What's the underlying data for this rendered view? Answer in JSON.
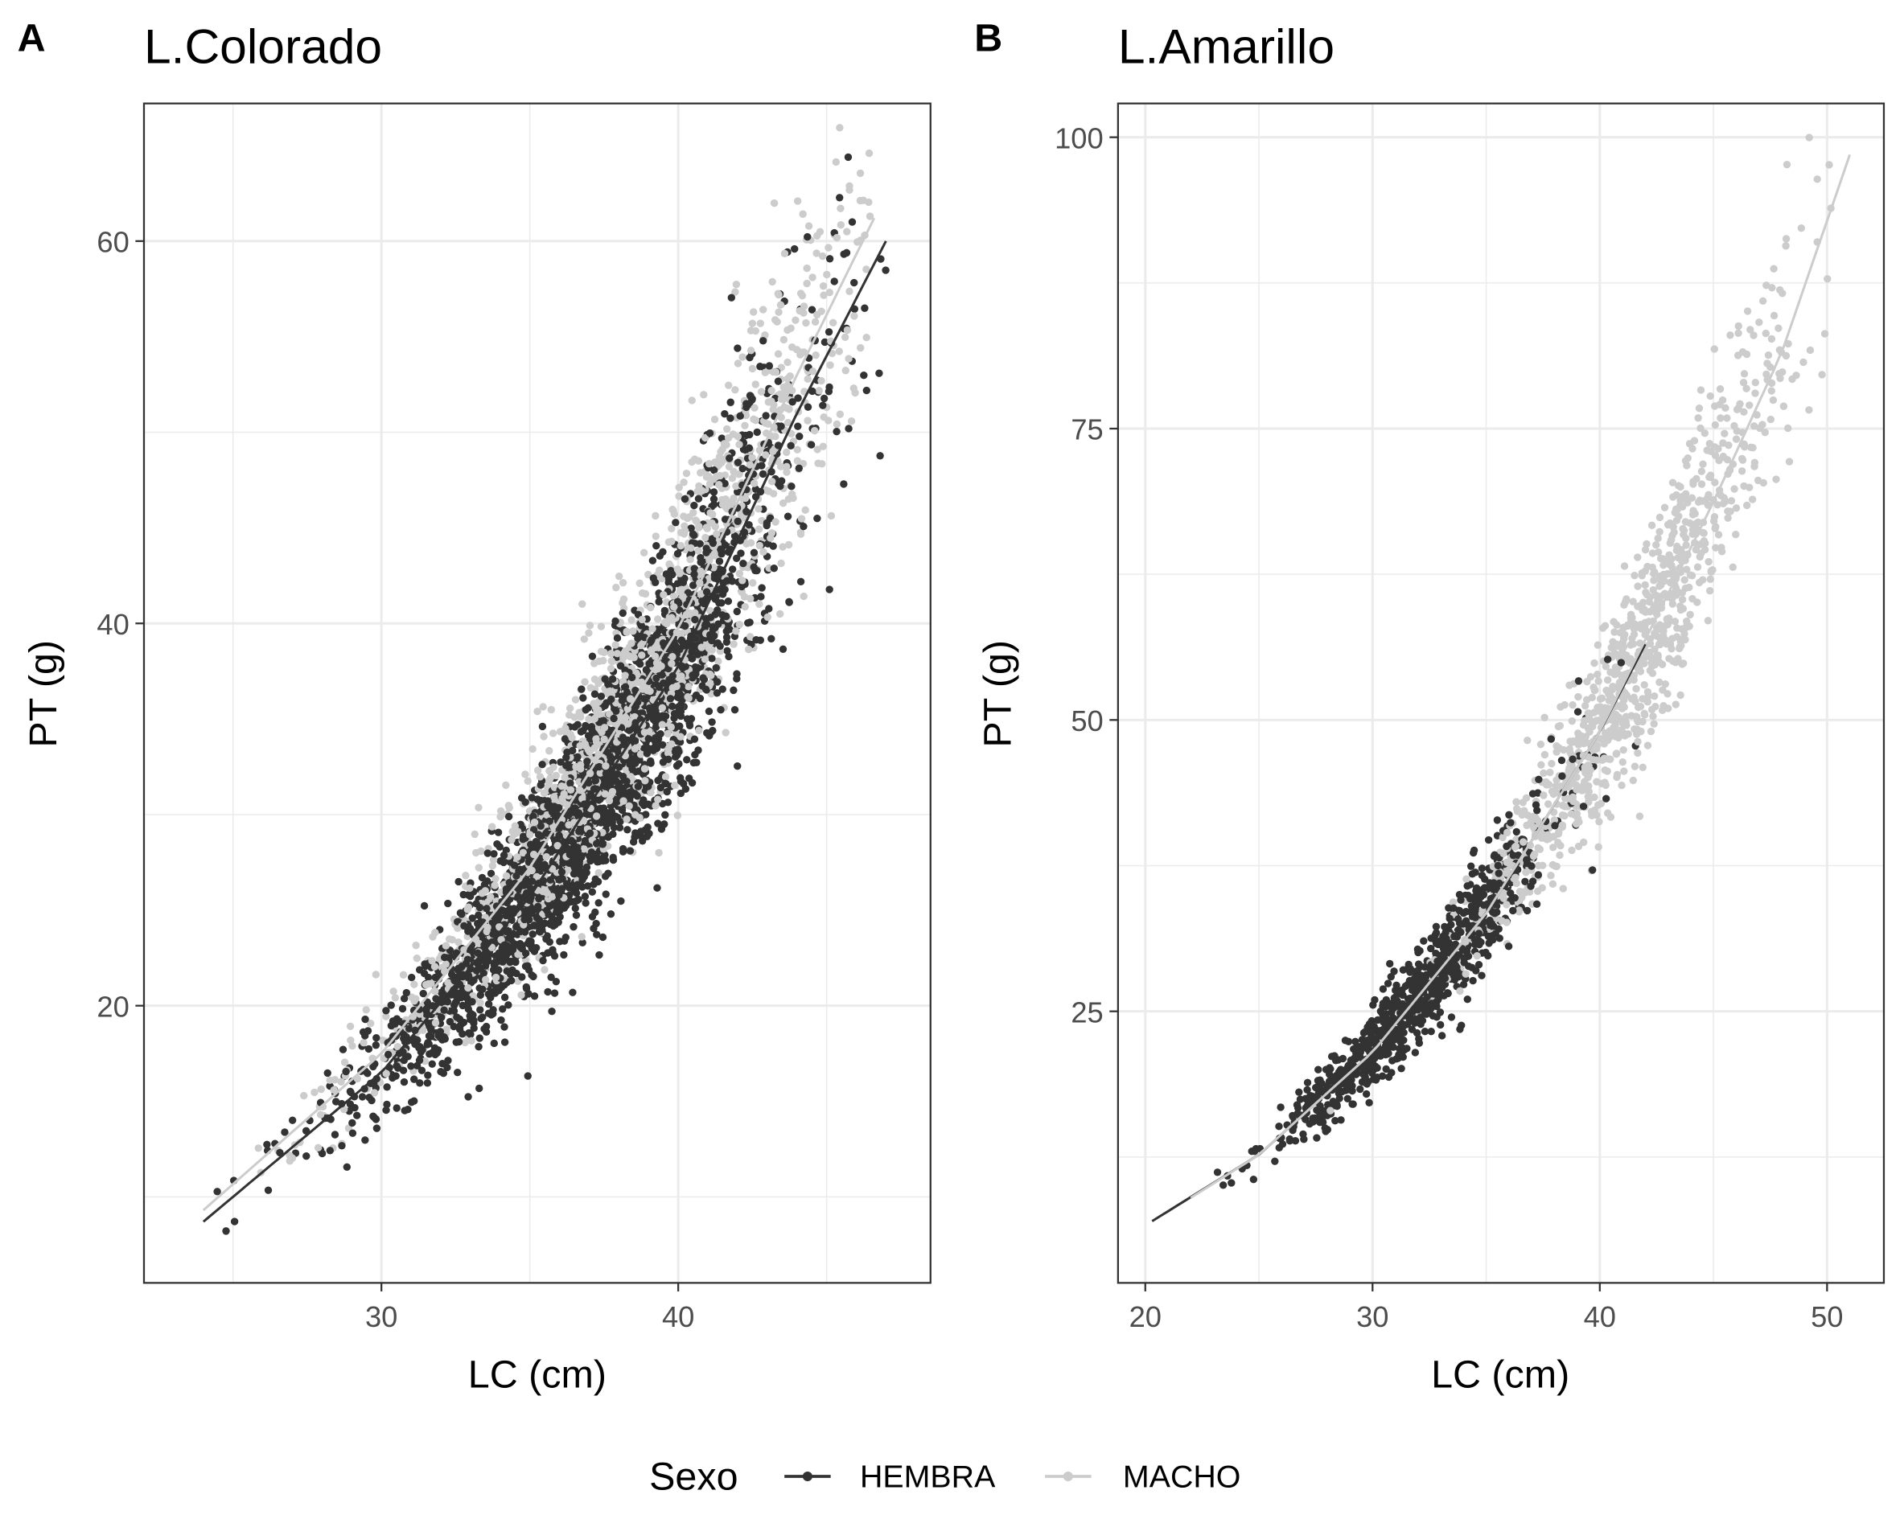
{
  "legend": {
    "title": "Sexo",
    "entries": [
      "HEMBRA",
      "MACHO"
    ],
    "placement": "bottom"
  },
  "colors": {
    "HEMBRA": "#333333",
    "MACHO": "#cccccc",
    "grid": "#ebebeb",
    "border": "#333333"
  },
  "chart_data": [
    {
      "type": "scatter",
      "tag": "A",
      "title": "L.Colorado",
      "xlabel": "LC (cm)",
      "ylabel": "PT (g)",
      "xlim": [
        22.0,
        48.5
      ],
      "ylim": [
        5.5,
        67.2
      ],
      "xticks": [
        30,
        40
      ],
      "yticks": [
        20,
        40,
        60
      ],
      "xminor": [
        25,
        35,
        45
      ],
      "yminor": [
        10,
        30,
        50
      ],
      "grid": true,
      "series": [
        {
          "name": "HEMBRA",
          "fit_line": [
            [
              24,
              8.7
            ],
            [
              30,
              16.5
            ],
            [
              35,
              25.7
            ],
            [
              40,
              37.7
            ],
            [
              44,
              51.0
            ],
            [
              47,
              60.0
            ]
          ],
          "x_center": 37,
          "x_spread": 3.6,
          "x_range": [
            24,
            47
          ]
        },
        {
          "name": "MACHO",
          "fit_line": [
            [
              24,
              9.3
            ],
            [
              30,
              17.5
            ],
            [
              35,
              27.2
            ],
            [
              40,
              39.7
            ],
            [
              44,
              53.0
            ],
            [
              46.6,
              61.2
            ]
          ],
          "x_center": 38.5,
          "x_spread": 4.2,
          "x_range": [
            24.5,
            46.5
          ]
        }
      ]
    },
    {
      "type": "scatter",
      "tag": "B",
      "title": "L.Amarillo",
      "xlabel": "LC (cm)",
      "ylabel": "PT (g)",
      "xlim": [
        18.8,
        52.5
      ],
      "ylim": [
        1.7,
        102.9
      ],
      "xticks": [
        20,
        30,
        40,
        50
      ],
      "yticks": [
        25,
        50,
        75,
        100
      ],
      "xminor": [
        25,
        35,
        45
      ],
      "yminor": [
        12.5,
        37.5,
        62.5,
        87.5
      ],
      "grid": true,
      "series": [
        {
          "name": "HEMBRA",
          "fit_line": [
            [
              20.3,
              7.0
            ],
            [
              25,
              12.7
            ],
            [
              30,
              21.5
            ],
            [
              35,
              33.4
            ],
            [
              40,
              49.0
            ],
            [
              42,
              56.5
            ]
          ],
          "x_center": 32,
          "x_spread": 3.0,
          "x_range": [
            20.3,
            42
          ]
        },
        {
          "name": "MACHO",
          "fit_line": [
            [
              22,
              9.0
            ],
            [
              25,
              12.7
            ],
            [
              30,
              21.5
            ],
            [
              35,
              33.4
            ],
            [
              40,
              49.0
            ],
            [
              45,
              68.7
            ],
            [
              48,
              81.5
            ],
            [
              51,
              98.5
            ]
          ],
          "x_center": 41.5,
          "x_spread": 3.5,
          "x_range": [
            22,
            51
          ]
        }
      ]
    }
  ]
}
